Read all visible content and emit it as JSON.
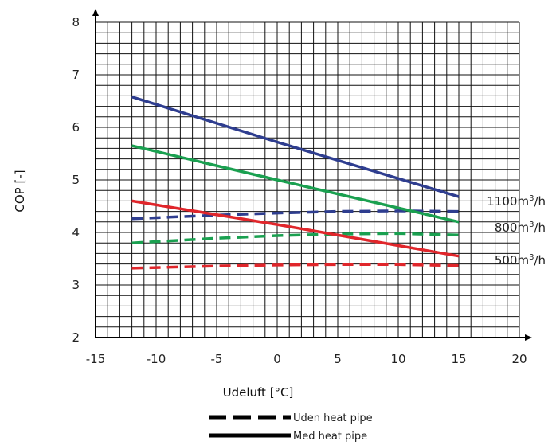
{
  "chart_data": {
    "type": "line",
    "title": "",
    "xlabel": "Udeluft [°C]",
    "ylabel": "COP [-]",
    "xlim": [
      -15,
      20
    ],
    "ylim": [
      2,
      8
    ],
    "xticks": [
      -15,
      -10,
      -5,
      0,
      5,
      10,
      15,
      20
    ],
    "yticks": [
      2,
      3,
      4,
      5,
      6,
      7,
      8
    ],
    "grid": true,
    "grid_step_x": 1,
    "grid_step_y": 0.2,
    "series": [
      {
        "flow": "1100",
        "style": "solid",
        "color": "#2e3d8f",
        "x": [
          -12,
          0,
          15
        ],
        "y": [
          6.58,
          5.72,
          4.68
        ]
      },
      {
        "flow": "1100",
        "style": "dashed",
        "color": "#2e3d8f",
        "x": [
          -12,
          -5,
          0,
          5,
          10,
          15
        ],
        "y": [
          4.26,
          4.33,
          4.37,
          4.4,
          4.41,
          4.4
        ]
      },
      {
        "flow": "800",
        "style": "solid",
        "color": "#1aa050",
        "x": [
          -12,
          0,
          15
        ],
        "y": [
          5.65,
          5.0,
          4.2
        ]
      },
      {
        "flow": "800",
        "style": "dashed",
        "color": "#1aa050",
        "x": [
          -12,
          -5,
          0,
          5,
          10,
          15
        ],
        "y": [
          3.8,
          3.89,
          3.94,
          3.97,
          3.98,
          3.95
        ]
      },
      {
        "flow": "500",
        "style": "solid",
        "color": "#e0262b",
        "x": [
          -12,
          0,
          15
        ],
        "y": [
          4.6,
          4.15,
          3.55
        ]
      },
      {
        "flow": "500",
        "style": "dashed",
        "color": "#e0262b",
        "x": [
          -12,
          -5,
          0,
          5,
          10,
          15
        ],
        "y": [
          3.32,
          3.36,
          3.38,
          3.39,
          3.39,
          3.37
        ]
      }
    ],
    "series_labels": [
      {
        "num": "1100",
        "unit": "m",
        "sup": "3",
        "rest": "/h"
      },
      {
        "num": "800",
        "unit": "m",
        "sup": "3",
        "rest": "/h"
      },
      {
        "num": "500",
        "unit": "m",
        "sup": "3",
        "rest": "/h"
      }
    ],
    "legend": {
      "placement": "bottom-center",
      "items": [
        {
          "label": "Uden heat pipe",
          "style": "dashed"
        },
        {
          "label": "Med heat pipe",
          "style": "solid"
        }
      ]
    }
  }
}
